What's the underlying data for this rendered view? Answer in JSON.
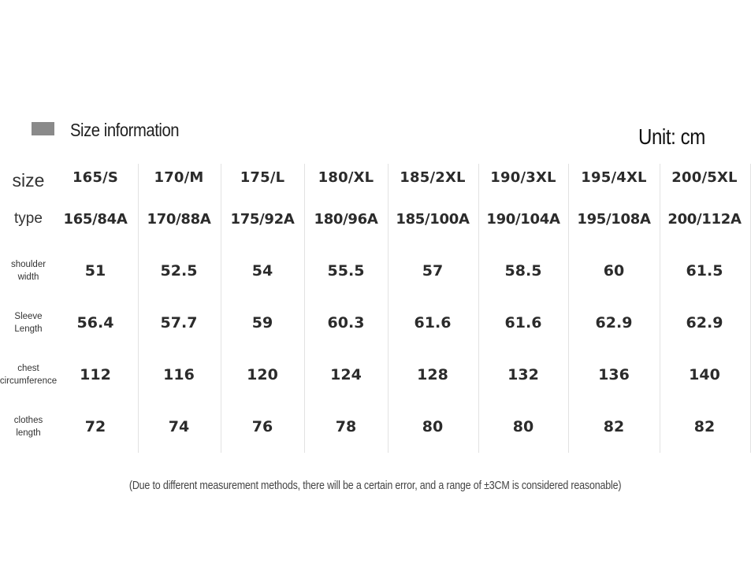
{
  "header": {
    "title": "Size information",
    "unit": "Unit: cm"
  },
  "table": {
    "size_label": "size",
    "type_label": "type",
    "sizes": [
      "165/S",
      "170/M",
      "175/L",
      "180/XL",
      "185/2XL",
      "190/3XL",
      "195/4XL",
      "200/5XL"
    ],
    "types": [
      "165/84A",
      "170/88A",
      "175/92A",
      "180/96A",
      "185/100A",
      "190/104A",
      "195/108A",
      "200/112A"
    ],
    "rows": [
      {
        "label_line1": "shoulder",
        "label_line2": "width",
        "values": [
          "51",
          "52.5",
          "54",
          "55.5",
          "57",
          "58.5",
          "60",
          "61.5"
        ]
      },
      {
        "label_line1": "Sleeve",
        "label_line2": "Length",
        "values": [
          "56.4",
          "57.7",
          "59",
          "60.3",
          "61.6",
          "61.6",
          "62.9",
          "62.9"
        ]
      },
      {
        "label_line1": "chest",
        "label_line2": "circumference",
        "values": [
          "112",
          "116",
          "120",
          "124",
          "128",
          "132",
          "136",
          "140"
        ]
      },
      {
        "label_line1": "clothes",
        "label_line2": "length",
        "values": [
          "72",
          "74",
          "76",
          "78",
          "80",
          "80",
          "82",
          "82"
        ]
      }
    ]
  },
  "footnote": "(Due to different measurement methods, there will be a certain error, and a range of ±3CM is considered reasonable)",
  "colors": {
    "swatch": "#8a8a8a",
    "grid_line": "#e2e2e2",
    "text": "#2b2b2b"
  }
}
